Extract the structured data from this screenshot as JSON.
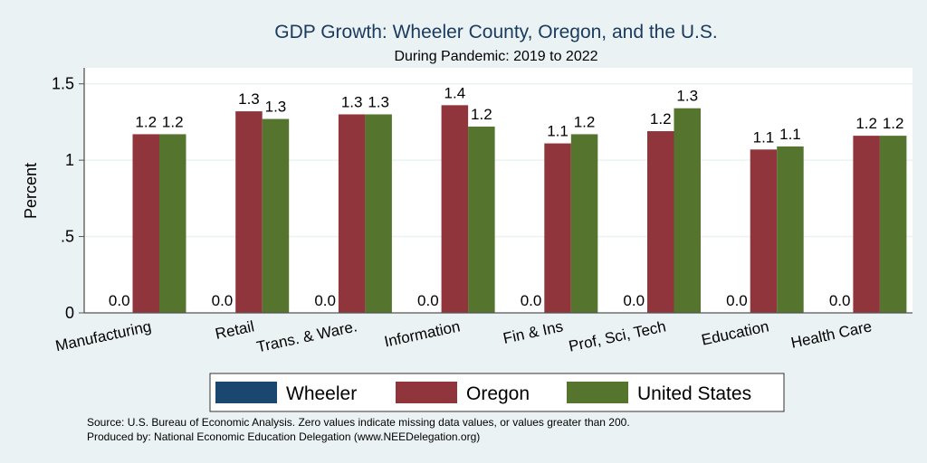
{
  "chart_data": {
    "type": "bar",
    "title": "GDP Growth: Wheeler County, Oregon, and the U.S.",
    "subtitle": "During Pandemic: 2019 to 2022",
    "ylabel": "Percent",
    "xlabel": "",
    "ylim": [
      0,
      1.6
    ],
    "yticks": [
      0,
      0.5,
      1,
      1.5
    ],
    "ytick_labels": [
      "0",
      ".5",
      "1",
      "1.5"
    ],
    "grid": true,
    "legend_position": "bottom",
    "categories": [
      "Manufacturing",
      "Retail",
      "Trans. & Ware.",
      "Information",
      "Fin & Ins",
      "Prof, Sci, Tech",
      "Education",
      "Health Care"
    ],
    "series": [
      {
        "name": "Wheeler",
        "color": "#1A476F",
        "values": [
          0,
          0,
          0,
          0,
          0,
          0,
          0,
          0
        ]
      },
      {
        "name": "Oregon",
        "color": "#90353B",
        "values": [
          1.17,
          1.32,
          1.3,
          1.36,
          1.11,
          1.19,
          1.07,
          1.16
        ]
      },
      {
        "name": "United States",
        "color": "#55752F",
        "values": [
          1.17,
          1.27,
          1.3,
          1.22,
          1.17,
          1.34,
          1.09,
          1.16
        ]
      }
    ],
    "notes": [
      "Source: U.S. Bureau of Economic Analysis. Zero values indicate missing data values, or values greater than 200.",
      "Produced by: National Economic Education Delegation (www.NEEDelegation.org)"
    ]
  }
}
